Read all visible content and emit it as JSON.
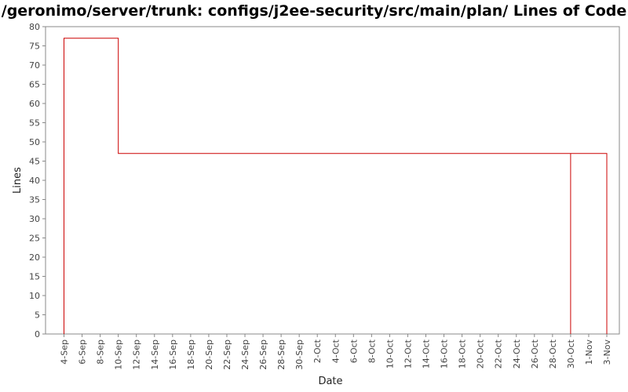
{
  "chart_data": {
    "type": "line",
    "title": "/geronimo/server/trunk: configs/j2ee-security/src/main/plan/ Lines of Code",
    "xlabel": "Date",
    "ylabel": "Lines",
    "ylim": [
      0,
      80
    ],
    "y_ticks": [
      0,
      5,
      10,
      15,
      20,
      25,
      30,
      35,
      40,
      45,
      50,
      55,
      60,
      65,
      70,
      75,
      80
    ],
    "x_range": [
      "3-Sep",
      "3-Nov"
    ],
    "x_ticks": [
      "4-Sep",
      "6-Sep",
      "8-Sep",
      "10-Sep",
      "12-Sep",
      "14-Sep",
      "16-Sep",
      "18-Sep",
      "20-Sep",
      "22-Sep",
      "24-Sep",
      "26-Sep",
      "28-Sep",
      "30-Sep",
      "2-Oct",
      "4-Oct",
      "6-Oct",
      "8-Oct",
      "10-Oct",
      "12-Oct",
      "14-Oct",
      "16-Oct",
      "18-Oct",
      "20-Oct",
      "22-Oct",
      "24-Oct",
      "26-Oct",
      "28-Oct",
      "30-Oct",
      "1-Nov",
      "3-Nov"
    ],
    "grid": false,
    "legend": "none",
    "line_color": "#cc0000",
    "series": [
      {
        "points": [
          {
            "x": "4-Sep",
            "y": 0
          },
          {
            "x": "4-Sep",
            "y": 77
          },
          {
            "x": "10-Sep",
            "y": 77
          },
          {
            "x": "10-Sep",
            "y": 47
          },
          {
            "x": "30-Oct",
            "y": 47
          },
          {
            "x": "30-Oct",
            "y": 0
          },
          {
            "x": "30-Oct",
            "y": 47
          },
          {
            "x": "3-Nov",
            "y": 47
          },
          {
            "x": "3-Nov",
            "y": 0
          }
        ]
      }
    ]
  }
}
